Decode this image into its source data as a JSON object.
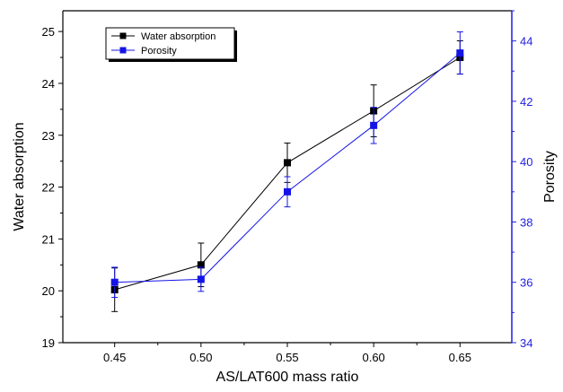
{
  "chart_data": {
    "type": "line",
    "x": [
      0.45,
      0.5,
      0.55,
      0.6,
      0.65
    ],
    "x_tick_labels": [
      "0.45",
      "0.50",
      "0.55",
      "0.60",
      "0.65"
    ],
    "xlim": [
      0.42,
      0.68
    ],
    "xlabel": "AS/LAT600 mass ratio",
    "ylabel_left": "Water absorption",
    "ylim_left": [
      19,
      25.4
    ],
    "y_ticks_left": [
      "19",
      "20",
      "21",
      "22",
      "23",
      "24",
      "25"
    ],
    "ylabel_right": "Porosity",
    "ylim_right": [
      34,
      45
    ],
    "y_ticks_right": [
      "34",
      "36",
      "38",
      "40",
      "42",
      "44"
    ],
    "grid": false,
    "legend_position": "top-left",
    "series": [
      {
        "name": "Water absorption",
        "axis": "left",
        "color": "#000000",
        "marker": "square",
        "values": [
          20.02,
          20.5,
          22.47,
          23.47,
          24.5
        ],
        "errors": [
          0.42,
          0.42,
          0.38,
          0.5,
          0.32
        ]
      },
      {
        "name": "Porosity",
        "axis": "right",
        "color": "#1414e6",
        "marker": "square",
        "values": [
          36.0,
          36.1,
          39.0,
          41.2,
          43.6
        ],
        "errors": [
          0.5,
          0.4,
          0.5,
          0.6,
          0.7
        ]
      }
    ]
  }
}
